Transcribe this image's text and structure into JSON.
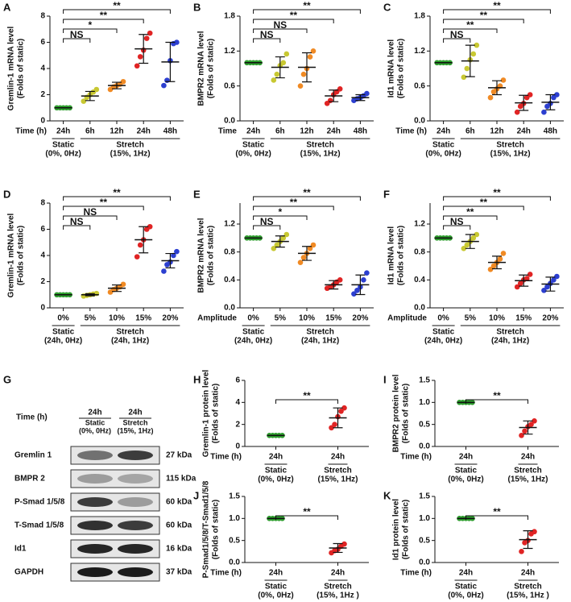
{
  "chart_data": [
    {
      "type": "dotplot",
      "panel": "A",
      "ylabel": [
        "Gremlin-1 mRNA level",
        "(Folds of static)"
      ],
      "x_title": "Time (h)",
      "categories": [
        "24h",
        "6h",
        "12h",
        "24h",
        "48h"
      ],
      "colors": [
        "#2e9e2e",
        "#c8c832",
        "#f08a24",
        "#e02424",
        "#2c3fd0"
      ],
      "points": [
        [
          1,
          1,
          1,
          1,
          1
        ],
        [
          1.5,
          1.8,
          2.0,
          2.2,
          2.4
        ],
        [
          2.4,
          2.6,
          2.7,
          2.8,
          3.0
        ],
        [
          4.2,
          4.9,
          5.4,
          6.3,
          6.7
        ],
        [
          2.7,
          3.1,
          4.6,
          5.9,
          6.0
        ]
      ],
      "means": [
        1,
        1.9,
        2.7,
        5.5,
        4.5
      ],
      "sd": [
        0,
        0.35,
        0.25,
        1.1,
        1.5
      ],
      "ylim": [
        0,
        8
      ],
      "yticks": [
        0,
        2,
        4,
        6,
        8
      ],
      "comparisons": [
        "NS",
        "*",
        "**",
        "**"
      ],
      "groups": [
        {
          "name": "Static",
          "condition": "(0%, 0Hz)"
        },
        {
          "name": "Stretch",
          "condition": "(15%, 1Hz)"
        }
      ]
    },
    {
      "type": "dotplot",
      "panel": "B",
      "ylabel": [
        "BMPR2 mRNA level",
        "(Folds of static)"
      ],
      "x_title": "Time",
      "categories": [
        "24h",
        "6h",
        "12h",
        "24h",
        "48h"
      ],
      "colors": [
        "#2e9e2e",
        "#c8c832",
        "#f08a24",
        "#e02424",
        "#2c3fd0"
      ],
      "points": [
        [
          1,
          1,
          1,
          1,
          1
        ],
        [
          0.7,
          0.8,
          0.95,
          1.0,
          1.15
        ],
        [
          0.6,
          0.8,
          0.9,
          1.1,
          1.2
        ],
        [
          0.3,
          0.35,
          0.45,
          0.5,
          0.55
        ],
        [
          0.35,
          0.38,
          0.4,
          0.43,
          0.47
        ]
      ],
      "means": [
        1,
        0.92,
        0.92,
        0.43,
        0.4
      ],
      "sd": [
        0,
        0.18,
        0.25,
        0.1,
        0.05
      ],
      "ylim": [
        0,
        1.8
      ],
      "yticks": [
        {
          "value": 0,
          "label": "0.0"
        },
        0.6,
        1.2,
        1.8
      ],
      "comparisons": [
        "NS",
        "NS",
        "**",
        "**"
      ],
      "groups": [
        {
          "name": "Static",
          "condition": "(0%, 0Hz)"
        },
        {
          "name": "Stretch",
          "condition": "(15%, 1Hz)"
        }
      ]
    },
    {
      "type": "dotplot",
      "panel": "C",
      "ylabel": [
        "Id1 mRNA level",
        "(Folds of static)"
      ],
      "x_title": "Time (h)",
      "categories": [
        "24h",
        "6h",
        "12h",
        "24h",
        "48h"
      ],
      "colors": [
        "#2e9e2e",
        "#c8c832",
        "#f08a24",
        "#e02424",
        "#2c3fd0"
      ],
      "points": [
        [
          1,
          1,
          1,
          1,
          1
        ],
        [
          0.75,
          0.9,
          1.05,
          1.15,
          1.3
        ],
        [
          0.4,
          0.5,
          0.55,
          0.6,
          0.7
        ],
        [
          0.15,
          0.25,
          0.3,
          0.4,
          0.45
        ],
        [
          0.15,
          0.25,
          0.3,
          0.4,
          0.45
        ]
      ],
      "means": [
        1,
        1.03,
        0.57,
        0.31,
        0.32
      ],
      "sd": [
        0,
        0.27,
        0.12,
        0.13,
        0.13
      ],
      "ylim": [
        0,
        1.8
      ],
      "yticks": [
        {
          "value": 0,
          "label": "0.0"
        },
        0.6,
        1.2,
        1.8
      ],
      "comparisons": [
        "NS",
        "**",
        "**",
        "**"
      ],
      "groups": [
        {
          "name": "Static",
          "condition": "(0%, 0Hz)"
        },
        {
          "name": "Stretch",
          "condition": "(15%, 1Hz)"
        }
      ]
    },
    {
      "type": "dotplot",
      "panel": "D",
      "ylabel": [
        "Gremlin-1 mRNA level",
        "(Folds of static)"
      ],
      "categories": [
        "0%",
        "5%",
        "10%",
        "15%",
        "20%"
      ],
      "colors": [
        "#2e9e2e",
        "#c8c832",
        "#f08a24",
        "#e02424",
        "#2c3fd0"
      ],
      "points": [
        [
          1,
          1,
          1,
          1,
          1
        ],
        [
          0.9,
          0.95,
          1.0,
          1.05,
          1.1
        ],
        [
          1.2,
          1.4,
          1.5,
          1.6,
          1.8
        ],
        [
          3.9,
          4.8,
          5.2,
          6.0,
          6.2
        ],
        [
          2.8,
          3.3,
          3.5,
          4.0,
          4.3
        ]
      ],
      "means": [
        1,
        1.0,
        1.5,
        5.2,
        3.6
      ],
      "sd": [
        0,
        0.08,
        0.25,
        1.0,
        0.55
      ],
      "ylim": [
        0,
        8
      ],
      "yticks": [
        0,
        2,
        4,
        6,
        8
      ],
      "comparisons": [
        "NS",
        "NS",
        "**",
        "**"
      ],
      "groups": [
        {
          "name": "Static",
          "condition": "(24h, 0Hz)"
        },
        {
          "name": "Stretch",
          "condition": "(24h, 1Hz)"
        }
      ]
    },
    {
      "type": "dotplot",
      "panel": "E",
      "ylabel": [
        "BMPR2 mRNA level",
        "(Folds of static)"
      ],
      "x_title": "Amplitude",
      "categories": [
        "0%",
        "5%",
        "10%",
        "15%",
        "20%"
      ],
      "colors": [
        "#2e9e2e",
        "#c8c832",
        "#f08a24",
        "#e02424",
        "#2c3fd0"
      ],
      "points": [
        [
          1,
          1,
          1,
          1,
          1
        ],
        [
          0.85,
          0.9,
          0.95,
          1.0,
          1.05
        ],
        [
          0.65,
          0.72,
          0.78,
          0.85,
          0.9
        ],
        [
          0.28,
          0.3,
          0.33,
          0.37,
          0.4
        ],
        [
          0.2,
          0.25,
          0.3,
          0.4,
          0.5
        ]
      ],
      "means": [
        1,
        0.95,
        0.78,
        0.33,
        0.33
      ],
      "sd": [
        0,
        0.08,
        0.1,
        0.06,
        0.14
      ],
      "ylim": [
        0,
        1.5
      ],
      "yticks": [
        {
          "value": 0,
          "label": "0.0"
        },
        0.4,
        0.8,
        1.2
      ],
      "comparisons": [
        "NS",
        "*",
        "**",
        "**"
      ],
      "groups": [
        {
          "name": "Static",
          "condition": "(24h, 0Hz)"
        },
        {
          "name": "Stretch",
          "condition": "(24h, 1Hz)"
        }
      ]
    },
    {
      "type": "dotplot",
      "panel": "F",
      "ylabel": [
        "Id1 mRNA level",
        "(Folds of static)"
      ],
      "x_title": "Amplitude",
      "categories": [
        "0%",
        "5%",
        "10%",
        "15%",
        "20%"
      ],
      "colors": [
        "#2e9e2e",
        "#c8c832",
        "#f08a24",
        "#e02424",
        "#2c3fd0"
      ],
      "points": [
        [
          1,
          1,
          1,
          1,
          1
        ],
        [
          0.85,
          0.9,
          0.95,
          1.0,
          1.05
        ],
        [
          0.55,
          0.6,
          0.65,
          0.7,
          0.78
        ],
        [
          0.3,
          0.35,
          0.4,
          0.42,
          0.48
        ],
        [
          0.25,
          0.3,
          0.35,
          0.4,
          0.45
        ]
      ],
      "means": [
        1,
        0.95,
        0.65,
        0.39,
        0.34
      ],
      "sd": [
        0,
        0.1,
        0.09,
        0.08,
        0.1
      ],
      "ylim": [
        0,
        1.5
      ],
      "yticks": [
        {
          "value": 0,
          "label": "0.0"
        },
        0.4,
        0.8,
        1.2
      ],
      "comparisons": [
        "NS",
        "**",
        "**",
        "**"
      ],
      "groups": [
        {
          "name": "Static",
          "condition": "(24h, 0Hz)"
        },
        {
          "name": "Stretch",
          "condition": "(24h, 1Hz)"
        }
      ]
    },
    {
      "type": "dotplot",
      "panel": "H",
      "ylabel": [
        "Gremlin-1 protein level",
        "(Folds of static)"
      ],
      "x_title": "Time (h)",
      "categories": [
        "24h",
        "24h"
      ],
      "colors": [
        "#2e9e2e",
        "#e02424"
      ],
      "points": [
        [
          1,
          1,
          1,
          1,
          1
        ],
        [
          1.7,
          2.0,
          2.7,
          3.2,
          3.5
        ]
      ],
      "means": [
        1,
        2.6
      ],
      "sd": [
        0,
        0.9
      ],
      "ylim": [
        0,
        6
      ],
      "yticks": [
        0,
        2,
        4,
        6
      ],
      "comparisons": [
        "**"
      ],
      "groups": [
        {
          "name": "Static",
          "condition": "(0%, 0Hz)"
        },
        {
          "name": "Stretch",
          "condition": "(15%, 1Hz)"
        }
      ]
    },
    {
      "type": "dotplot",
      "panel": "I",
      "ylabel": [
        "BMPR2 protein level",
        "(Folds of static)"
      ],
      "x_title": "Time (h)",
      "categories": [
        "24h",
        "24h"
      ],
      "colors": [
        "#2e9e2e",
        "#e02424"
      ],
      "points": [
        [
          1,
          1,
          1,
          1,
          1
        ],
        [
          0.25,
          0.35,
          0.45,
          0.5,
          0.58
        ]
      ],
      "means": [
        1,
        0.43
      ],
      "sd": [
        0,
        0.15
      ],
      "ylim": [
        0,
        1.5
      ],
      "yticks": [
        {
          "value": 0,
          "label": "0.0"
        },
        0.5,
        {
          "value": 1,
          "label": "1.0"
        },
        1.5
      ],
      "comparisons": [
        "**"
      ],
      "groups": [
        {
          "name": "Static",
          "condition": "(0%, 0Hz)"
        },
        {
          "name": "Stretch",
          "condition": "(15%, 1Hz)"
        }
      ]
    },
    {
      "type": "dotplot",
      "panel": "J",
      "ylabel": [
        "P-Smad1/5/8/T-Smad1/5/8",
        "(Folds of static)"
      ],
      "x_title": "Time (h)",
      "categories": [
        "24h",
        "24h"
      ],
      "colors": [
        "#2e9e2e",
        "#e02424"
      ],
      "points": [
        [
          1,
          1,
          1,
          1,
          1
        ],
        [
          0.22,
          0.27,
          0.3,
          0.37,
          0.42
        ]
      ],
      "means": [
        1,
        0.33
      ],
      "sd": [
        0,
        0.1
      ],
      "ylim": [
        0,
        1.5
      ],
      "yticks": [
        {
          "value": 0,
          "label": "0.0"
        },
        0.5,
        {
          "value": 1,
          "label": "1.0"
        },
        1.5
      ],
      "comparisons": [
        "**"
      ],
      "groups": [
        {
          "name": "Static",
          "condition": "(0%, 0Hz)"
        },
        {
          "name": "Stretch",
          "condition": "(15%, 1Hz )"
        }
      ]
    },
    {
      "type": "dotplot",
      "panel": "K",
      "ylabel": [
        "Id1 protein level",
        "(Folds of static)"
      ],
      "x_title": "Time (h)",
      "categories": [
        "24h",
        "24h"
      ],
      "colors": [
        "#2e9e2e",
        "#e02424"
      ],
      "points": [
        [
          1,
          1,
          1,
          1,
          1
        ],
        [
          0.25,
          0.45,
          0.5,
          0.65,
          0.7
        ]
      ],
      "means": [
        1,
        0.52
      ],
      "sd": [
        0,
        0.2
      ],
      "ylim": [
        0,
        1.5
      ],
      "yticks": [
        {
          "value": 0,
          "label": "0.0"
        },
        0.5,
        {
          "value": 1,
          "label": "1.0"
        },
        1.5
      ],
      "comparisons": [
        "**"
      ],
      "groups": [
        {
          "name": "Static",
          "condition": "(0%, 0Hz)"
        },
        {
          "name": "Stretch",
          "condition": "(15%, 1Hz )"
        }
      ]
    }
  ],
  "blot": {
    "panel": "G",
    "time_title": "Time (h)",
    "lanes": [
      {
        "time": "24h",
        "name": "Static",
        "condition": "(0%, 0Hz)"
      },
      {
        "time": "24h",
        "name": "Stretch",
        "condition": "(15%, 1Hz)"
      }
    ],
    "rows": [
      {
        "protein": "Gremlin 1",
        "size": "27 kDa"
      },
      {
        "protein": "BMPR 2",
        "size": "115 kDa"
      },
      {
        "protein": "P-Smad 1/5/8",
        "size": "60 kDa"
      },
      {
        "protein": "T-Smad 1/5/8",
        "size": "60 kDa"
      },
      {
        "protein": "Id1",
        "size": "16 kDa"
      },
      {
        "protein": "GAPDH",
        "size": "37 kDa"
      }
    ]
  }
}
